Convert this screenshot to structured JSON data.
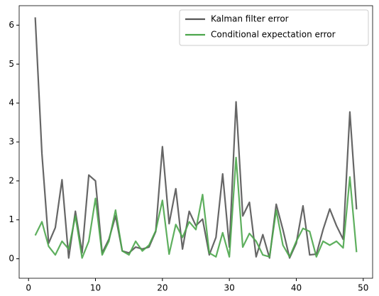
{
  "chart_data": {
    "type": "line",
    "x": [
      1,
      2,
      3,
      4,
      5,
      6,
      7,
      8,
      9,
      10,
      11,
      12,
      13,
      14,
      15,
      16,
      17,
      18,
      19,
      20,
      21,
      22,
      23,
      24,
      25,
      26,
      27,
      28,
      29,
      30,
      31,
      32,
      33,
      34,
      35,
      36,
      37,
      38,
      39,
      40,
      41,
      42,
      43,
      44,
      45,
      46,
      47,
      48,
      49
    ],
    "series": [
      {
        "name": "Kalman filter error",
        "color": "#555555",
        "values": [
          6.2,
          2.7,
          0.4,
          0.8,
          2.03,
          0.02,
          1.22,
          0.15,
          2.15,
          2.0,
          0.15,
          0.5,
          1.1,
          0.2,
          0.15,
          0.3,
          0.25,
          0.3,
          0.7,
          2.88,
          0.9,
          1.8,
          0.25,
          1.22,
          0.85,
          1.02,
          0.1,
          0.55,
          2.18,
          0.3,
          4.03,
          1.1,
          1.45,
          0.05,
          0.62,
          0.02,
          1.4,
          0.75,
          0.02,
          0.4,
          1.36,
          0.1,
          0.12,
          0.75,
          1.28,
          0.85,
          0.5,
          3.77,
          1.27
        ]
      },
      {
        "name": "Conditional expectation error",
        "color": "#4ca64c",
        "values": [
          0.6,
          0.95,
          0.32,
          0.1,
          0.45,
          0.25,
          1.1,
          0.02,
          0.45,
          1.55,
          0.1,
          0.45,
          1.25,
          0.2,
          0.1,
          0.45,
          0.2,
          0.35,
          0.72,
          1.5,
          0.12,
          0.88,
          0.55,
          0.95,
          0.75,
          1.65,
          0.15,
          0.05,
          0.67,
          0.05,
          2.6,
          0.3,
          0.65,
          0.45,
          0.1,
          0.05,
          1.25,
          0.35,
          0.05,
          0.45,
          0.78,
          0.7,
          0.05,
          0.45,
          0.35,
          0.45,
          0.28,
          2.1,
          0.17
        ]
      }
    ],
    "xlim": [
      -1.4,
      51.4
    ],
    "ylim": [
      -0.5,
      6.5
    ],
    "xticks": [
      0,
      10,
      20,
      30,
      40,
      50
    ],
    "yticks": [
      0,
      1,
      2,
      3,
      4,
      5,
      6
    ],
    "legend": "upper right",
    "grid": false
  }
}
